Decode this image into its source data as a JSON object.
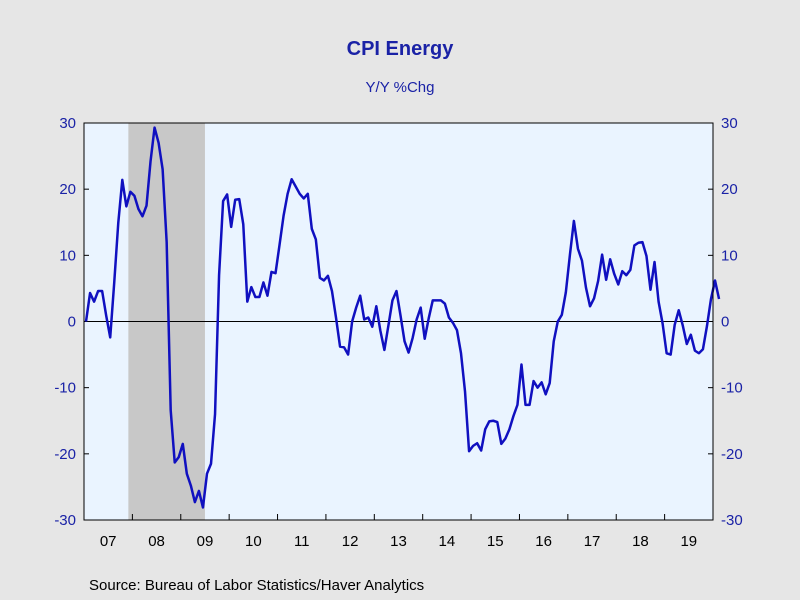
{
  "chart_data": {
    "type": "line",
    "title": "CPI Energy",
    "subtitle": "Y/Y %Chg",
    "source": "Source:  Bureau of Labor Statistics/Haver Analytics",
    "x_start": "2007-01",
    "x_end": "2019-12",
    "x_ticks": [
      "07",
      "08",
      "09",
      "10",
      "11",
      "12",
      "13",
      "14",
      "15",
      "16",
      "17",
      "18",
      "19"
    ],
    "ylim": [
      -30,
      30
    ],
    "y_ticks": [
      "30",
      "20",
      "10",
      "0",
      "-10",
      "-20",
      "-30"
    ],
    "y_tick_values": [
      30,
      20,
      10,
      0,
      -10,
      -20,
      -30
    ],
    "right_axis": true,
    "zero_line": true,
    "grid": false,
    "recession_band": {
      "start": "2007-12",
      "end": "2009-06"
    },
    "colors": {
      "line": "#1010c0",
      "text": "#1a22a6",
      "plot_bg": "#eaf4ff",
      "outer_bg": "#e6e6e6",
      "recession": "#c8c8c8",
      "axis": "#000000"
    },
    "series": [
      {
        "values": [
          0.0,
          4.3,
          3.0,
          4.6,
          4.6,
          0.9,
          -2.4,
          5.9,
          14.9,
          21.4,
          17.4,
          19.6,
          19.0,
          17.0,
          15.9,
          17.5,
          24.2,
          29.3,
          27.0,
          23.0,
          12.0,
          -13.4,
          -21.3,
          -20.5,
          -18.5,
          -23.0,
          -24.8,
          -27.3,
          -25.6,
          -28.1,
          -23.0,
          -21.5,
          -14.0,
          7.0,
          18.2,
          19.2,
          14.3,
          18.4,
          18.5,
          14.7,
          3.0,
          5.2,
          3.7,
          3.7,
          5.9,
          3.9,
          7.5,
          7.3,
          11.6,
          16.0,
          19.3,
          21.5,
          20.4,
          19.3,
          18.6,
          19.3,
          14.0,
          12.4,
          6.6,
          6.2,
          6.9,
          4.6,
          0.6,
          -3.8,
          -3.9,
          -5.0,
          0.0,
          2.1,
          3.9,
          0.3,
          0.6,
          -0.8,
          2.3,
          -1.4,
          -4.3,
          -0.6,
          3.2,
          4.6,
          0.9,
          -3.0,
          -4.7,
          -2.5,
          0.3,
          2.1,
          -2.6,
          0.5,
          3.2,
          3.2,
          3.2,
          2.7,
          0.6,
          -0.2,
          -1.3,
          -4.8,
          -10.6,
          -19.6,
          -18.8,
          -18.4,
          -19.5,
          -16.3,
          -15.1,
          -15.0,
          -15.2,
          -18.5,
          -17.7,
          -16.3,
          -14.3,
          -12.6,
          -6.5,
          -12.6,
          -12.6,
          -9.0,
          -10.0,
          -9.2,
          -11.0,
          -9.3,
          -3.0,
          0.0,
          1.0,
          4.4,
          10.0,
          15.2,
          11.0,
          9.2,
          5.1,
          2.3,
          3.5,
          6.1,
          10.1,
          6.3,
          9.4,
          7.2,
          5.6,
          7.6,
          7.0,
          7.8,
          11.5,
          11.9,
          12.0,
          9.9,
          4.8,
          9.0,
          3.0,
          -0.3,
          -4.8,
          -5.0,
          -0.5,
          1.7,
          -0.6,
          -3.4,
          -2.0,
          -4.4,
          -4.8,
          -4.2,
          -0.7,
          3.4,
          6.2,
          3.4
        ]
      }
    ]
  }
}
